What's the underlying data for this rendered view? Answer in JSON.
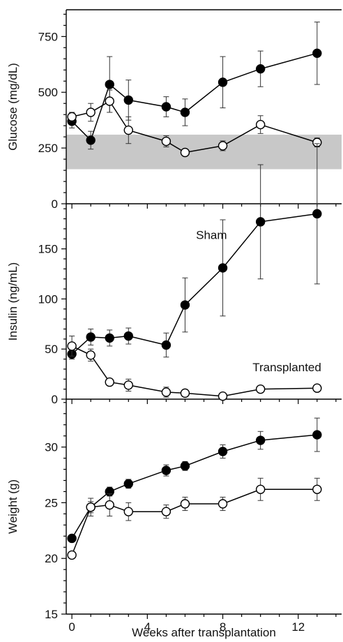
{
  "chart_data": [
    {
      "type": "line",
      "panel": "glucose",
      "ylabel": "Glucose (mg/dL)",
      "ylim": [
        0,
        870
      ],
      "yticks": [
        0,
        250,
        500,
        750
      ],
      "ytick_labels": [
        "0",
        "250",
        "500",
        "750"
      ],
      "shaded_band": {
        "from": 155,
        "to": 310,
        "color": "#c8c8c8"
      },
      "series": [
        {
          "marker": "filled",
          "x": [
            0,
            1,
            2,
            3,
            5,
            6,
            8,
            10,
            13
          ],
          "values": [
            370,
            285,
            535,
            465,
            435,
            410,
            545,
            605,
            675
          ],
          "errors": [
            30,
            40,
            125,
            90,
            45,
            60,
            115,
            80,
            140
          ]
        },
        {
          "marker": "open",
          "x": [
            0,
            1,
            2,
            3,
            5,
            6,
            8,
            10,
            13
          ],
          "values": [
            390,
            410,
            460,
            330,
            280,
            230,
            260,
            355,
            275
          ],
          "errors": [
            20,
            40,
            50,
            60,
            25,
            12,
            22,
            40,
            20
          ]
        }
      ]
    },
    {
      "type": "line",
      "panel": "insulin",
      "ylabel": "Insulin (ng/mL)",
      "ylim": [
        0,
        195
      ],
      "yticks": [
        0,
        50,
        100,
        150
      ],
      "ytick_labels": [
        "0",
        "50",
        "100",
        "150"
      ],
      "annotations": [
        "Sham",
        "Transplanted"
      ],
      "series": [
        {
          "marker": "filled",
          "x": [
            0,
            1,
            2,
            3,
            5,
            6,
            8,
            10,
            13
          ],
          "values": [
            45,
            62,
            61,
            63,
            54,
            94,
            131,
            177,
            185
          ],
          "errors": [
            5,
            8,
            8,
            8,
            12,
            27,
            48,
            57,
            70
          ]
        },
        {
          "marker": "open",
          "x": [
            0,
            1,
            2,
            3,
            5,
            6,
            8,
            10,
            13
          ],
          "values": [
            53,
            44,
            17,
            14,
            7,
            6,
            3,
            10,
            11
          ],
          "errors": [
            10,
            6,
            3,
            6,
            5,
            3,
            2,
            2,
            2
          ]
        }
      ]
    },
    {
      "type": "line",
      "panel": "weight",
      "ylabel": "Weight (g)",
      "xlabel": "Weeks after transplantation",
      "xlim": [
        -0.3,
        14.3
      ],
      "xticks": [
        0,
        4,
        8,
        12
      ],
      "xtick_labels": [
        "0",
        "4",
        "8",
        "12"
      ],
      "ylim": [
        15,
        34.3
      ],
      "yticks": [
        15,
        20,
        25,
        30
      ],
      "ytick_labels": [
        "15",
        "20",
        "25",
        "30"
      ],
      "series": [
        {
          "marker": "filled",
          "x": [
            0,
            1,
            2,
            3,
            5,
            6,
            8,
            10,
            13
          ],
          "values": [
            21.8,
            24.6,
            26.0,
            26.7,
            27.9,
            28.3,
            29.6,
            30.6,
            31.1
          ],
          "errors": [
            0.3,
            0.5,
            0.4,
            0.4,
            0.5,
            0.4,
            0.6,
            0.8,
            1.5
          ]
        },
        {
          "marker": "open",
          "x": [
            0,
            1,
            2,
            3,
            5,
            6,
            8,
            10,
            13
          ],
          "values": [
            20.3,
            24.6,
            24.8,
            24.2,
            24.2,
            24.9,
            24.9,
            26.2,
            26.2
          ],
          "errors": [
            0.2,
            0.8,
            1.0,
            0.8,
            0.6,
            0.6,
            0.6,
            1.0,
            1.0
          ]
        }
      ]
    }
  ]
}
